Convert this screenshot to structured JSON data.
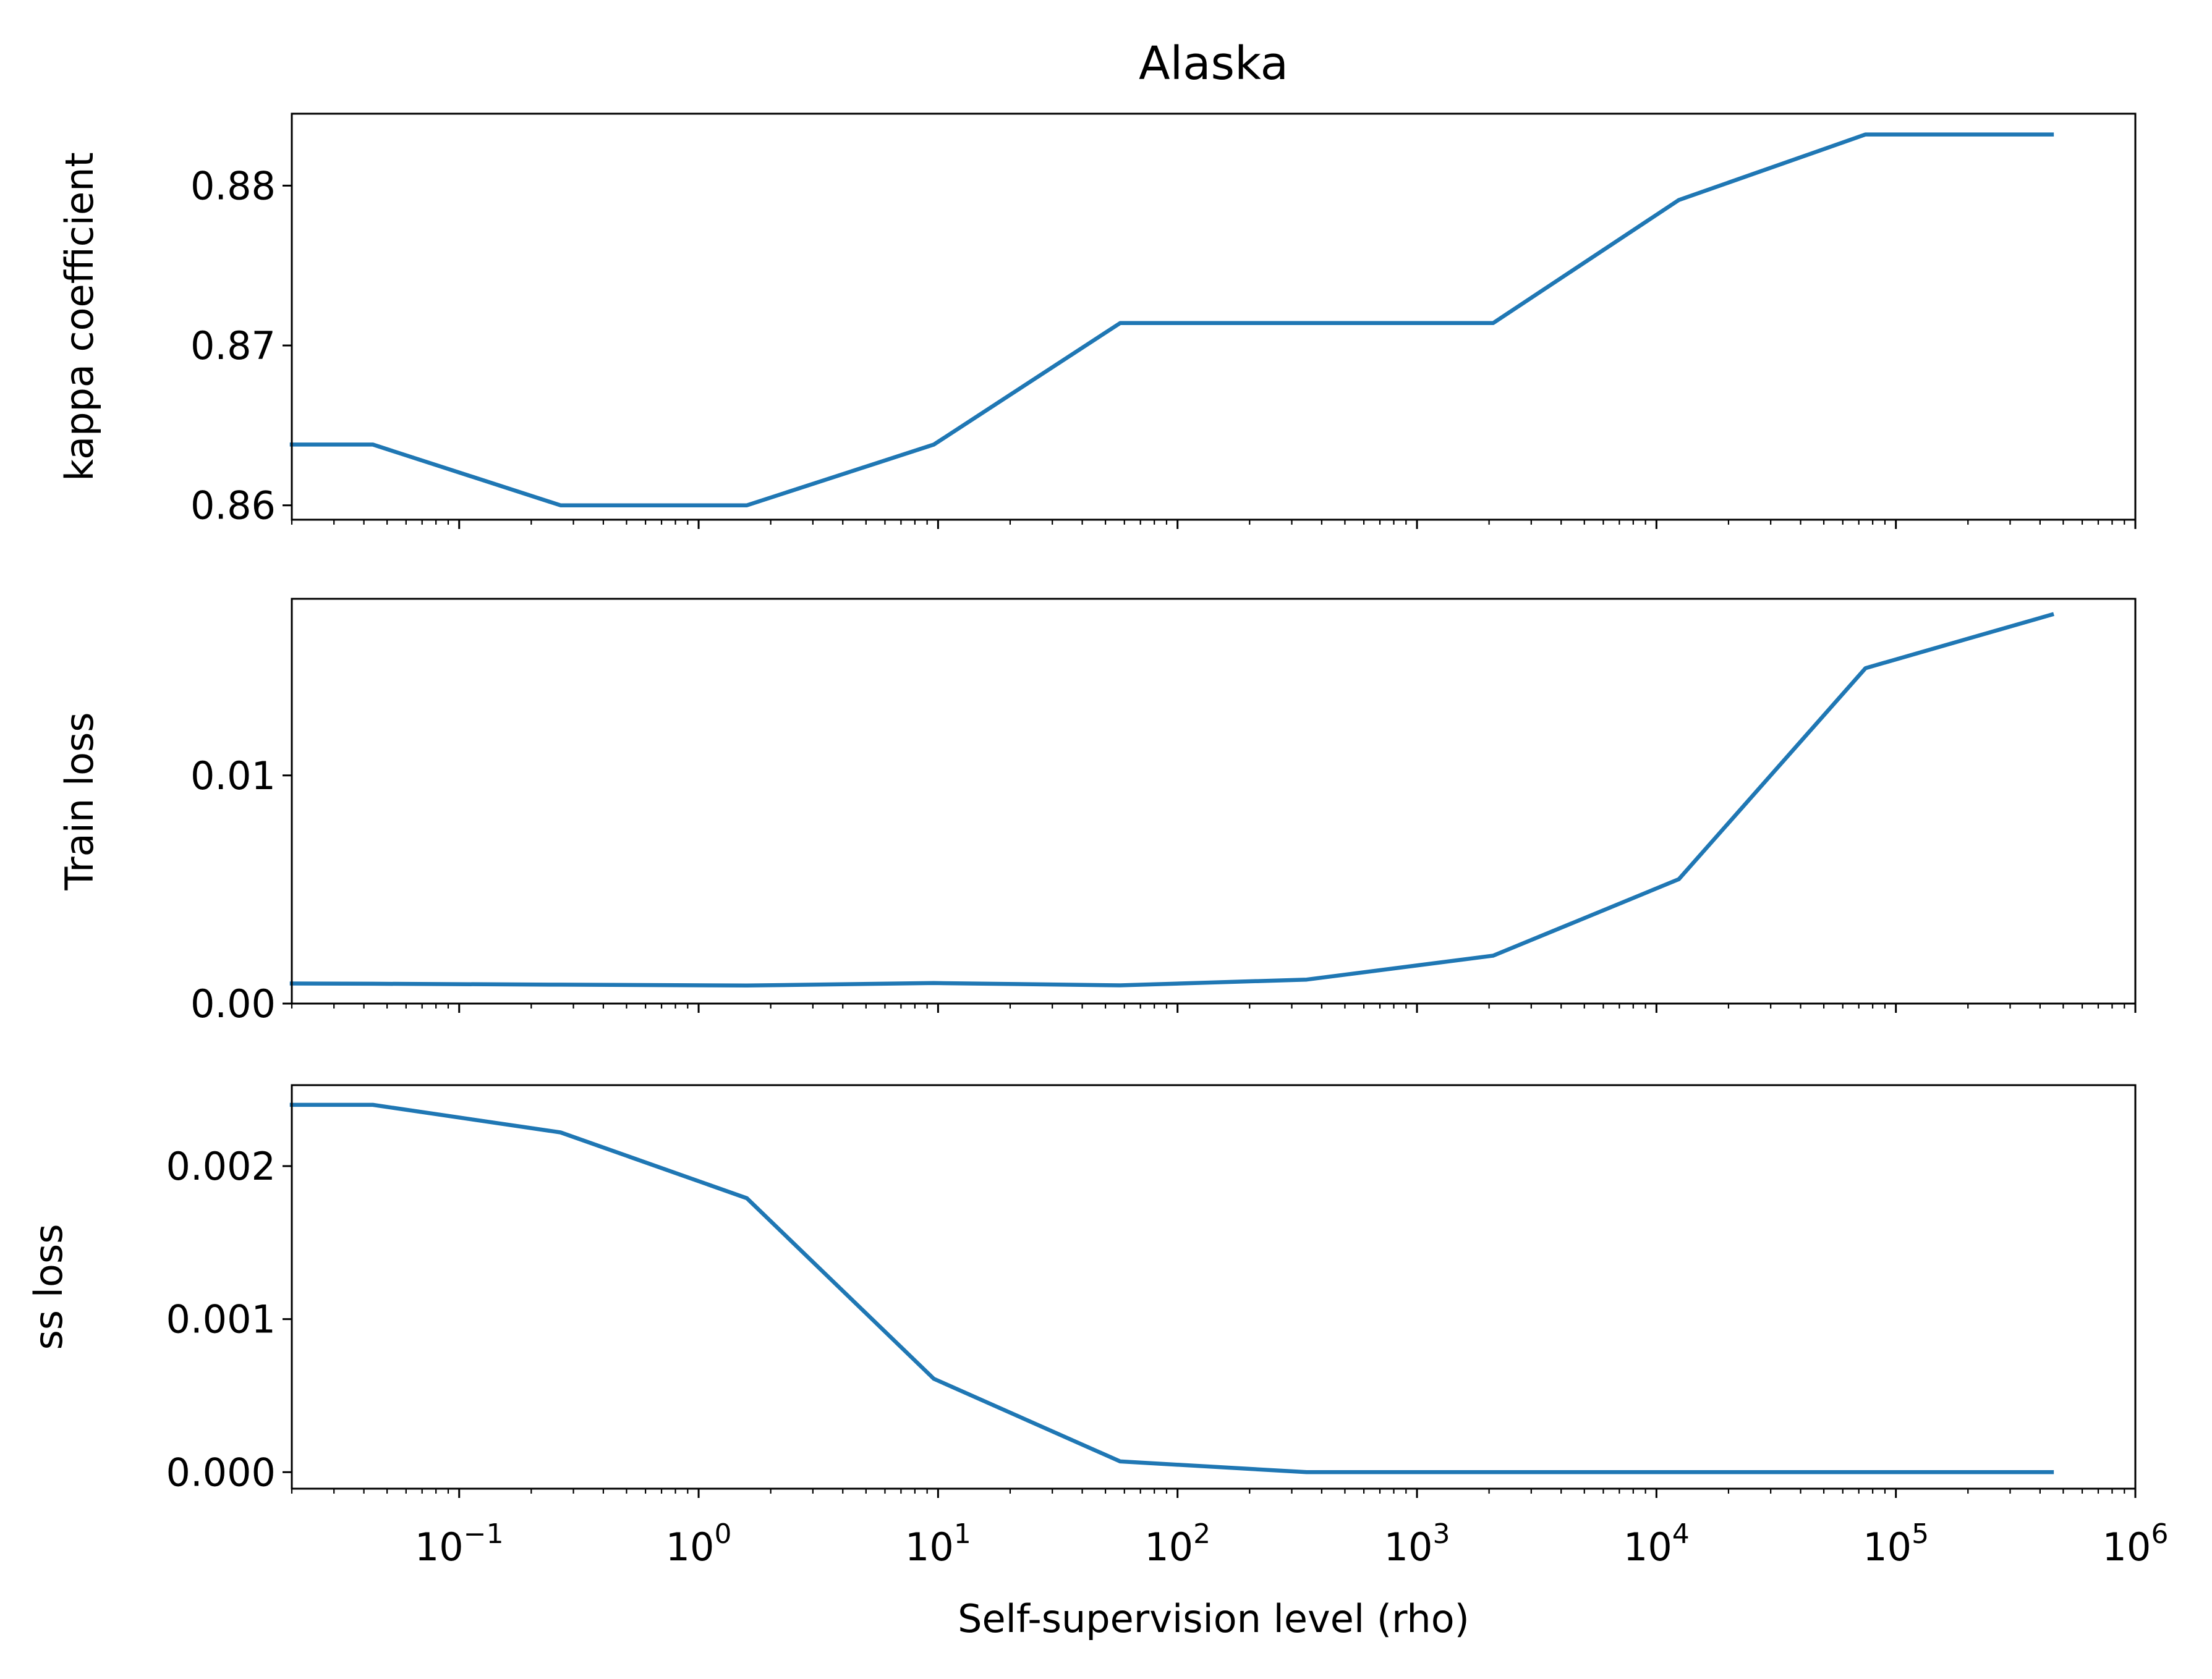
{
  "title": "Alaska",
  "colors": {
    "line": "#1f77b4",
    "axes": "#000000",
    "background": "#ffffff"
  },
  "chart_data": {
    "type": "line",
    "shared_x": {
      "label": "Self-supervision level (rho)",
      "scale": "log",
      "xlim": [
        0.02,
        1000000
      ],
      "major_ticks": [
        0.1,
        1,
        10,
        100,
        1000,
        10000,
        100000,
        1000000
      ],
      "tick_labels": [
        {
          "base": "10",
          "exp": "−1"
        },
        {
          "base": "10",
          "exp": "0"
        },
        {
          "base": "10",
          "exp": "1"
        },
        {
          "base": "10",
          "exp": "2"
        },
        {
          "base": "10",
          "exp": "3"
        },
        {
          "base": "10",
          "exp": "4"
        },
        {
          "base": "10",
          "exp": "5"
        },
        {
          "base": "10",
          "exp": "6"
        }
      ],
      "values": [
        0.02,
        0.0436,
        0.265,
        1.59,
        9.6,
        57.6,
        346,
        2080,
        12400,
        74700,
        448000
      ]
    },
    "panels": [
      {
        "ylabel": "kappa coefficient",
        "ylim": [
          0.8591,
          0.8845
        ],
        "yticks": [
          0.86,
          0.87,
          0.88
        ],
        "ytick_labels": [
          "0.86",
          "0.87",
          "0.88"
        ],
        "values": [
          0.8638,
          0.8638,
          0.86,
          0.86,
          0.8638,
          0.8714,
          0.8714,
          0.8714,
          0.8791,
          0.8832,
          0.8832
        ]
      },
      {
        "ylabel": "Train loss",
        "ylim": [
          0.0,
          0.01774
        ],
        "yticks": [
          0.0,
          0.01
        ],
        "ytick_labels": [
          "0.00",
          "0.01"
        ],
        "values": [
          0.00088,
          0.00087,
          0.00083,
          0.00079,
          0.0009,
          0.0008,
          0.00105,
          0.0021,
          0.00545,
          0.0147,
          0.01705
        ]
      },
      {
        "ylabel": "ss loss",
        "ylim": [
          -0.000108,
          0.002529
        ],
        "yticks": [
          0.0,
          0.001,
          0.002
        ],
        "ytick_labels": [
          "0.000",
          "0.001",
          "0.002"
        ],
        "values": [
          0.0024,
          0.0024,
          0.00222,
          0.00179,
          0.00061,
          7e-05,
          0.0,
          0.0,
          0.0,
          0.0,
          0.0
        ]
      }
    ]
  }
}
